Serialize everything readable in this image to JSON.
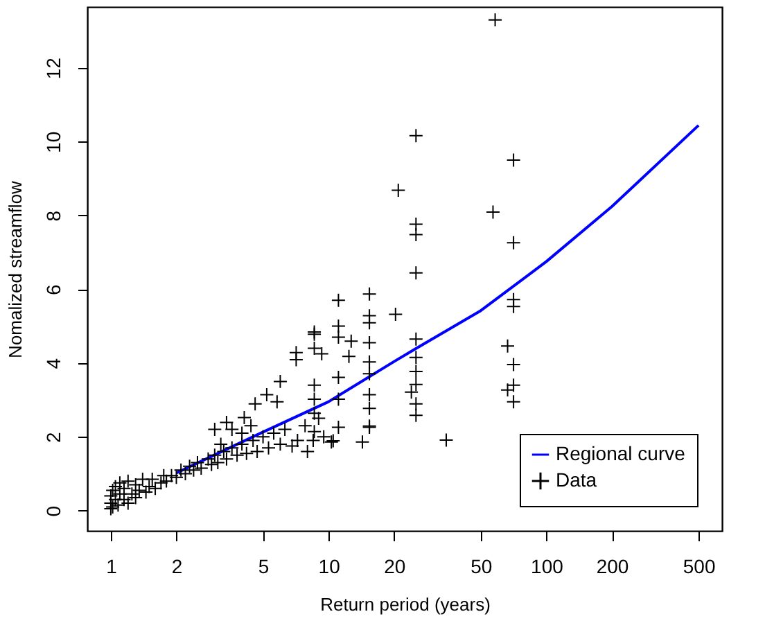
{
  "chart_data": {
    "type": "scatter",
    "xlabel": "Return period (years)",
    "ylabel": "Nomalized streamflow",
    "log": "x",
    "xlim": [
      0.78,
      641
    ],
    "xticks": [
      1,
      2,
      5,
      10,
      20,
      50,
      100,
      200,
      500
    ],
    "ylim": [
      -0.55,
      13.65
    ],
    "yticks": [
      0,
      2,
      4,
      6,
      8,
      10,
      12
    ],
    "grid": false,
    "legend": "bottom right",
    "marker": "cross",
    "series": [
      {
        "name": "Regional curve",
        "type": "line",
        "marker": "none",
        "color": "#0000ff",
        "x": [
          2,
          5,
          10,
          20,
          25,
          50,
          100,
          200,
          500
        ],
        "values": [
          1.02,
          2.13,
          2.95,
          4.04,
          4.38,
          5.42,
          6.75,
          8.24,
          10.44
        ]
      },
      {
        "name": "Data",
        "color": "#000000",
        "x": [
          1.0,
          1.0,
          1.0,
          1.02,
          1.02,
          1.05,
          1.05,
          1.08,
          1.1,
          1.1,
          1.15,
          1.15,
          1.2,
          1.2,
          1.25,
          1.3,
          1.3,
          1.35,
          1.4,
          1.45,
          1.5,
          1.55,
          1.6,
          1.7,
          1.75,
          1.8,
          1.9,
          2.0,
          2.1,
          2.2,
          2.3,
          2.4,
          2.5,
          2.6,
          2.8,
          2.9,
          3.0,
          3.1,
          3.3,
          3.4,
          3.6,
          3.8,
          4.0,
          4.2,
          4.5,
          4.7,
          5.0,
          5.3,
          5.6,
          6.0,
          6.3,
          6.8,
          7.2,
          7.8,
          8.0,
          8.5,
          9.0,
          9.5,
          3.2,
          3.6,
          4.0,
          4.4,
          3.0,
          3.4,
          4.1,
          4.6,
          5.2,
          5.8,
          6.0,
          7.1,
          7.1,
          8.6,
          8.6,
          8.6,
          8.6,
          8.6,
          8.6,
          8.6,
          9.3,
          10.3,
          10.5,
          11.1,
          11.1,
          11.1,
          11.1,
          11.1,
          11.1,
          12.4,
          12.7,
          14.3,
          15.4,
          15.4,
          15.4,
          15.4,
          15.4,
          15.4,
          15.4,
          15.4,
          15.4,
          15.4,
          20.3,
          20.9,
          25.2,
          25.2,
          25.2,
          25.2,
          25.2,
          25.2,
          25.2,
          25.2,
          25.2,
          25.2,
          24.0,
          34.7,
          56.9,
          58.2,
          66.4,
          66.4,
          70.7,
          70.7,
          70.7,
          70.7,
          70.7,
          70.7,
          70.7
        ],
        "values": [
          0.05,
          0.2,
          0.4,
          0.1,
          0.55,
          0.3,
          0.65,
          0.15,
          0.45,
          0.75,
          0.3,
          0.6,
          0.2,
          0.8,
          0.45,
          0.35,
          0.7,
          0.55,
          0.85,
          0.5,
          0.65,
          0.85,
          0.6,
          0.75,
          0.95,
          0.8,
          0.95,
          0.9,
          1.1,
          1.0,
          1.2,
          1.1,
          1.3,
          1.15,
          1.4,
          1.25,
          1.5,
          1.3,
          1.6,
          1.4,
          1.7,
          1.5,
          1.8,
          1.55,
          1.9,
          1.6,
          2.0,
          1.7,
          2.1,
          1.8,
          2.2,
          1.75,
          1.9,
          2.3,
          1.6,
          1.9,
          2.5,
          2.0,
          1.8,
          2.2,
          2.1,
          2.3,
          2.2,
          2.39,
          2.52,
          2.89,
          3.14,
          2.95,
          3.5,
          4.28,
          4.09,
          4.84,
          4.78,
          4.4,
          3.4,
          3.02,
          2.64,
          2.14,
          4.25,
          1.86,
          1.89,
          5.7,
          5.0,
          4.7,
          3.61,
          3.02,
          2.26,
          4.18,
          4.59,
          1.86,
          5.87,
          5.28,
          5.09,
          4.55,
          4.03,
          3.71,
          3.14,
          2.77,
          2.29,
          2.26,
          5.32,
          8.68,
          10.16,
          7.76,
          7.48,
          6.44,
          4.65,
          4.15,
          3.77,
          3.42,
          2.89,
          2.58,
          3.21,
          1.91,
          8.09,
          13.3,
          4.46,
          3.27,
          9.5,
          7.26,
          5.72,
          5.53,
          3.96,
          3.4,
          2.95
        ]
      }
    ]
  }
}
